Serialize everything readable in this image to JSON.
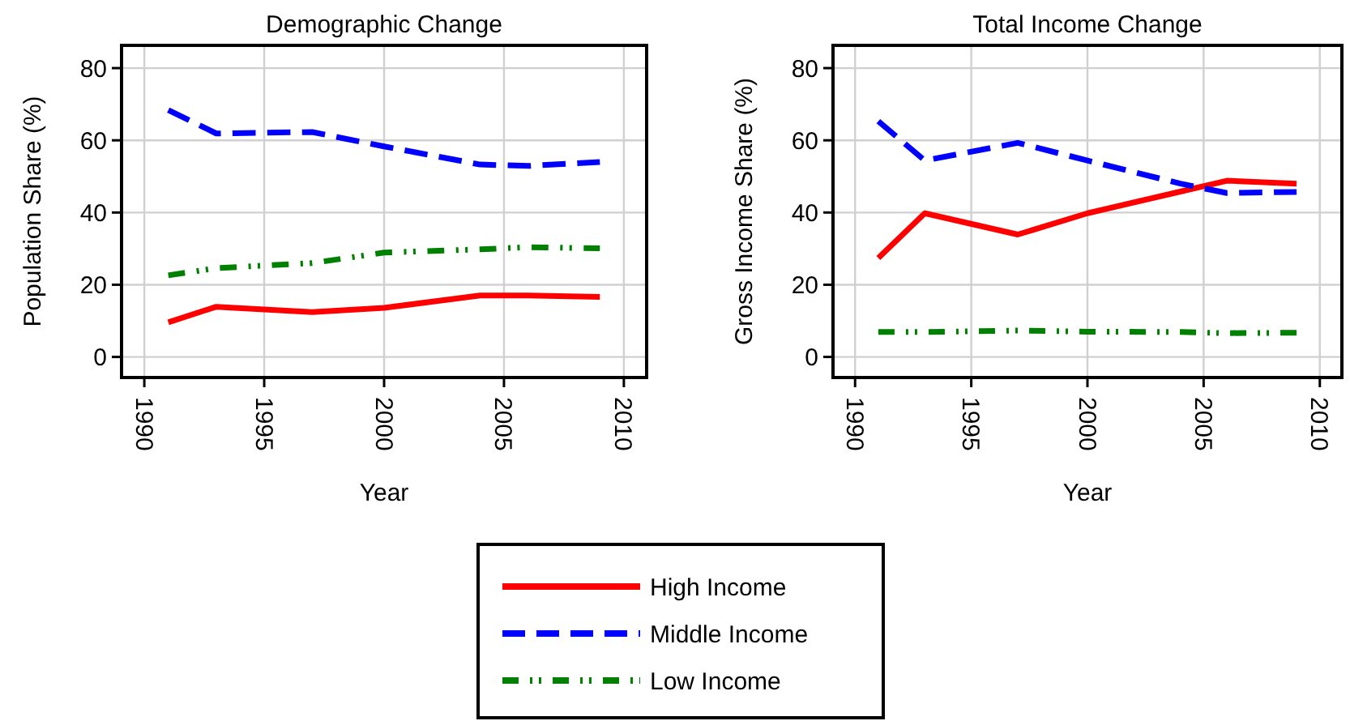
{
  "chart_data": [
    {
      "type": "line",
      "title": "Demographic Change",
      "xlabel": "Year",
      "ylabel": "Population Share (%)",
      "x": [
        1991,
        1993,
        1997,
        2000,
        2004,
        2006,
        2009
      ],
      "xlim": [
        1989.05,
        2010.95
      ],
      "xticks": [
        1990,
        1995,
        2000,
        2005,
        2010
      ],
      "ylim": [
        -5.7,
        86.3
      ],
      "yticks": [
        0,
        20,
        40,
        60,
        80
      ],
      "grid": true,
      "legend": "bottom",
      "marker": "none",
      "series": [
        {
          "name": "High Income",
          "color": "#ff0000",
          "line_style": "solid",
          "values": [
            9.6,
            13.9,
            12.4,
            13.6,
            17,
            17,
            16.6
          ]
        },
        {
          "name": "Middle Income",
          "color": "#0000ff",
          "line_style": "dashed",
          "values": [
            68.4,
            61.9,
            62.3,
            58.3,
            53.3,
            52.9,
            54
          ]
        },
        {
          "name": "Low Income",
          "color": "#008000",
          "line_style": "dotted",
          "values": [
            22.6,
            24.6,
            26,
            28.9,
            29.8,
            30.4,
            30.1
          ]
        }
      ]
    },
    {
      "type": "line",
      "title": "Total Income Change",
      "xlabel": "Year",
      "ylabel": "Gross Income Share (%)",
      "x": [
        1991,
        1993,
        1997,
        2000,
        2004,
        2006,
        2009
      ],
      "xlim": [
        1989.05,
        2010.95
      ],
      "xticks": [
        1990,
        1995,
        2000,
        2005,
        2010
      ],
      "ylim": [
        -5.7,
        86.3
      ],
      "yticks": [
        0,
        20,
        40,
        60,
        80
      ],
      "grid": true,
      "marker": "none",
      "series": [
        {
          "color": "#ff0000",
          "line_style": "solid",
          "values": [
            27.4,
            39.8,
            33.9,
            39.8,
            45.8,
            48.8,
            48
          ]
        },
        {
          "color": "#0000ff",
          "line_style": "dashed",
          "values": [
            65.3,
            54.4,
            59.3,
            54.4,
            48,
            45.4,
            45.7
          ]
        },
        {
          "color": "#008000",
          "line_style": "dotted",
          "values": [
            6.9,
            6.9,
            7.3,
            7,
            6.9,
            6.6,
            6.7
          ]
        }
      ]
    }
  ]
}
